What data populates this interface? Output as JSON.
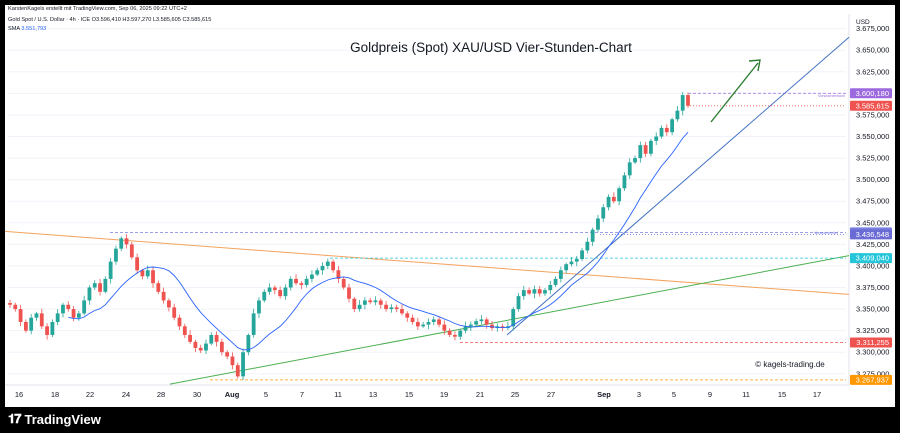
{
  "header": {
    "author_line": "KarstenKagels erstellt mit TradingView.com, Sep 06, 2025 09:22 UTC+2",
    "symbol_line": "Gold Spot / U.S. Dollar · 4h · ICE  O3.596,410  H3.597,270  L3.585,605  C3.585,615",
    "sma_label": "SMA",
    "sma_value": "3.551,793"
  },
  "footer": {
    "brand": "TradingView"
  },
  "watermark": "© kagels-trading.de",
  "colors": {
    "up": "#26a69a",
    "down": "#ef5350",
    "sma": "#2962ff",
    "trend_blue": "#4472c4",
    "trend_green": "#4caf50",
    "trend_orange": "#f5a35c",
    "arrow": "#2e7d32"
  },
  "chart_data": {
    "type": "candlestick",
    "title": "Goldpreis (Spot) XAU/USD Vier-Stunden-Chart",
    "currency": "USD",
    "ylim": [
      3262,
      3692
    ],
    "y_ticks": [
      "3.675,000",
      "3.650,000",
      "3.625,000",
      "3.600,000",
      "3.575,000",
      "3.550,000",
      "3.525,000",
      "3.500,000",
      "3.475,000",
      "3.450,000",
      "3.425,000",
      "3.400,000",
      "3.375,000",
      "3.350,000",
      "3.325,000",
      "3.300,000",
      "3.275,000"
    ],
    "x_tick_labels": [
      "16",
      "18",
      "22",
      "24",
      "28",
      "30",
      "Aug",
      "5",
      "7",
      "11",
      "13",
      "15",
      "19",
      "21",
      "25",
      "27",
      "Sep",
      "3",
      "5",
      "9",
      "11",
      "15",
      "17"
    ],
    "closes": [
      3355,
      3350,
      3335,
      3325,
      3340,
      3345,
      3330,
      3320,
      3335,
      3345,
      3355,
      3350,
      3340,
      3345,
      3360,
      3375,
      3380,
      3370,
      3385,
      3405,
      3420,
      3432,
      3425,
      3410,
      3395,
      3388,
      3395,
      3380,
      3370,
      3360,
      3352,
      3340,
      3330,
      3320,
      3312,
      3305,
      3302,
      3310,
      3320,
      3312,
      3300,
      3295,
      3285,
      3272,
      3300,
      3320,
      3345,
      3360,
      3370,
      3375,
      3372,
      3365,
      3375,
      3385,
      3380,
      3378,
      3385,
      3390,
      3395,
      3400,
      3405,
      3395,
      3385,
      3375,
      3362,
      3350,
      3355,
      3360,
      3358,
      3360,
      3355,
      3350,
      3352,
      3350,
      3345,
      3340,
      3335,
      3330,
      3332,
      3335,
      3338,
      3332,
      3325,
      3320,
      3318,
      3325,
      3330,
      3332,
      3336,
      3338,
      3332,
      3328,
      3330,
      3328,
      3330,
      3350,
      3365,
      3372,
      3368,
      3373,
      3368,
      3372,
      3378,
      3385,
      3395,
      3402,
      3405,
      3408,
      3418,
      3428,
      3442,
      3455,
      3468,
      3480,
      3475,
      3490,
      3505,
      3520,
      3525,
      3540,
      3530,
      3545,
      3550,
      3560,
      3555,
      3570,
      3580,
      3598,
      3585.6
    ],
    "sma_label": "SMA",
    "sma_last": "3.551,793",
    "levels": [
      {
        "price": 3600.18,
        "label": "3.600,180",
        "color": "#9c6ade",
        "style": "dashed",
        "note": "Vorwochenhoch"
      },
      {
        "price": 3585.615,
        "label": "3.585,615",
        "color": "#ef5350",
        "style": "dotted"
      },
      {
        "price": 3438.92,
        "label": "3.438,920",
        "color": "#7b7fe0",
        "style": "dashed",
        "note": "Vorwochentief"
      },
      {
        "price": 3436.548,
        "label": "3.436,548",
        "color": "#6b6bd6",
        "style": "dotted"
      },
      {
        "price": 3409.04,
        "label": "3.409,040",
        "color": "#26c6da",
        "style": "dashed"
      },
      {
        "price": 3311.255,
        "label": "3.311,255",
        "color": "#ef5350",
        "style": "dashed"
      },
      {
        "price": 3267.937,
        "label": "3.267,937",
        "color": "#ff9800",
        "style": "dashed"
      }
    ],
    "annotations": [
      "Vorwochenhoch",
      "Vorwochentief"
    ]
  }
}
